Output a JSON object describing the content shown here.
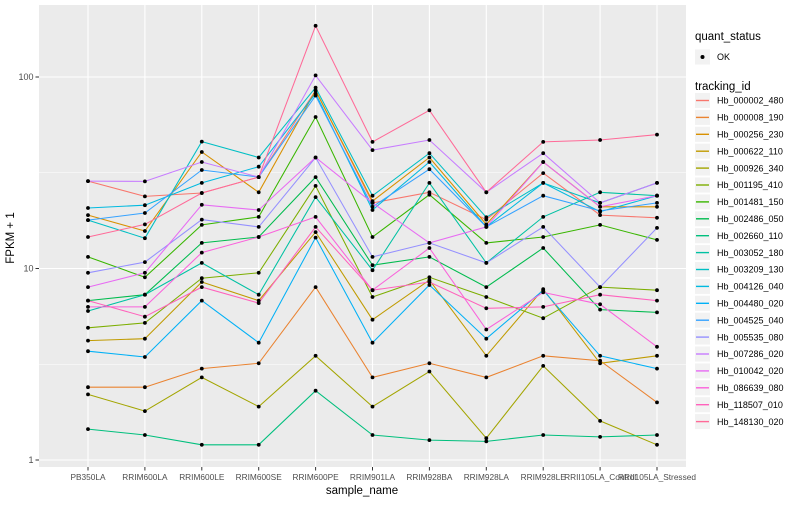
{
  "figure": {
    "background": "#FFFFFF",
    "panel_background": "#EBEBEB",
    "grid_color": "#FFFFFF",
    "legend_key_background": "#F2F2F2",
    "axis_text_color": "#4D4D4D"
  },
  "axes": {
    "x_title": "sample_name",
    "y_title": "FPKM + 1",
    "y_tick_labels": [
      "1",
      "10",
      "100"
    ]
  },
  "legend": {
    "quant_status_title": "quant_status",
    "quant_status_items": [
      {
        "label": "OK",
        "shape": "point",
        "color": "#000000"
      }
    ],
    "tracking_id_title": "tracking_id"
  },
  "chart_data": {
    "type": "line",
    "title": "",
    "xlabel": "sample_name",
    "ylabel": "FPKM + 1",
    "y_scale": "log10",
    "ylim": [
      1,
      200
    ],
    "y_ticks": [
      1,
      10,
      100
    ],
    "y_minor_ticks": [
      3.162,
      31.62
    ],
    "grid": true,
    "legend_position": "right",
    "point_marker": "black point = quant_status OK",
    "categories": [
      "PB350LA",
      "RRIM600LA",
      "RRIM600LE",
      "RRIM600SE",
      "RRIM600PE",
      "RRIM901LA",
      "RRIM928BA",
      "RRIM928LA",
      "RRIM928LE",
      "RRII105LA_Control",
      "RRII105LA_Stressed"
    ],
    "series": [
      {
        "name": "Hb_000002_480",
        "color": "#F8766D",
        "values": [
          28.6,
          23.8,
          24.8,
          30,
          85,
          22,
          25,
          18,
          31.5,
          19,
          18.4
        ]
      },
      {
        "name": "Hb_000008_190",
        "color": "#EA8331",
        "values": [
          2.4,
          2.4,
          3.0,
          3.2,
          8.0,
          2.7,
          3.2,
          2.7,
          3.5,
          3.3,
          2.0
        ]
      },
      {
        "name": "Hb_000256_230",
        "color": "#D89000",
        "values": [
          19,
          15.7,
          40.6,
          25,
          85,
          22.5,
          38,
          17,
          36,
          21,
          21
        ]
      },
      {
        "name": "Hb_000622_110",
        "color": "#C09B00",
        "values": [
          4.2,
          4.3,
          8.5,
          6.8,
          15.5,
          5.4,
          8.7,
          3.5,
          7.8,
          3.2,
          3.5
        ]
      },
      {
        "name": "Hb_000926_340",
        "color": "#A3A500",
        "values": [
          2.2,
          1.8,
          2.7,
          1.9,
          3.5,
          1.9,
          2.9,
          1.3,
          3.1,
          1.6,
          1.2
        ]
      },
      {
        "name": "Hb_001195_410",
        "color": "#7CAE00",
        "values": [
          4.9,
          5.2,
          8.9,
          9.5,
          27,
          7.1,
          9.0,
          7.1,
          5.5,
          8.0,
          7.7
        ]
      },
      {
        "name": "Hb_001481_150",
        "color": "#39B600",
        "values": [
          11.5,
          9.0,
          16.9,
          18.6,
          61.8,
          14.6,
          24.3,
          13.6,
          14.6,
          16.9,
          14.1
        ]
      },
      {
        "name": "Hb_002486_050",
        "color": "#00BB4E",
        "values": [
          6.8,
          7.3,
          13.6,
          14.6,
          30,
          10.4,
          11.5,
          8.0,
          12.8,
          6.1,
          5.9
        ]
      },
      {
        "name": "Hb_002660_110",
        "color": "#00BF7D",
        "values": [
          1.45,
          1.35,
          1.2,
          1.2,
          2.3,
          1.35,
          1.27,
          1.25,
          1.35,
          1.32,
          1.35
        ]
      },
      {
        "name": "Hb_003052_180",
        "color": "#00C1A3",
        "values": [
          6.0,
          7.3,
          10.7,
          7.3,
          23.6,
          9.8,
          28,
          10.7,
          18.6,
          25,
          24
        ]
      },
      {
        "name": "Hb_003209_130",
        "color": "#00BFC4",
        "values": [
          17.9,
          14.4,
          46,
          38,
          88,
          24,
          40,
          18.5,
          28,
          22,
          28
        ]
      },
      {
        "name": "Hb_004126_040",
        "color": "#00BAE0",
        "values": [
          20.7,
          21.4,
          28,
          34,
          82,
          20.2,
          36,
          16.5,
          28,
          19.8,
          24
        ]
      },
      {
        "name": "Hb_004480_020",
        "color": "#00B0F6",
        "values": [
          3.7,
          3.45,
          6.8,
          4.1,
          14.5,
          4.1,
          8.2,
          4.3,
          7.7,
          3.5,
          3.0
        ]
      },
      {
        "name": "Hb_004525_040",
        "color": "#35A2FF",
        "values": [
          17.9,
          19.5,
          32.7,
          30,
          80,
          21,
          33,
          16.5,
          24,
          20,
          22
        ]
      },
      {
        "name": "Hb_005535_080",
        "color": "#9590FF",
        "values": [
          9.5,
          10.8,
          18,
          16.5,
          38,
          11.5,
          13.6,
          10.7,
          16.5,
          8.0,
          16.3
        ]
      },
      {
        "name": "Hb_007286_020",
        "color": "#C77CFF",
        "values": [
          28.6,
          28.5,
          36,
          30,
          102,
          41.5,
          46.9,
          25,
          40,
          22,
          28
        ]
      },
      {
        "name": "Hb_010042_020",
        "color": "#E76BF3",
        "values": [
          8.0,
          9.5,
          21.5,
          20.2,
          38,
          22,
          13.6,
          16.5,
          36,
          21,
          24
        ]
      },
      {
        "name": "Hb_086639_080",
        "color": "#FA62DB",
        "values": [
          6.3,
          6.3,
          12.1,
          14.6,
          18.6,
          7.7,
          12.8,
          4.8,
          7.5,
          6.5,
          3.9
        ]
      },
      {
        "name": "Hb_118507_010",
        "color": "#FF62BC",
        "values": [
          6.8,
          5.6,
          8.0,
          6.6,
          16.5,
          7.7,
          8.5,
          6.2,
          6.3,
          7.3,
          6.8
        ]
      },
      {
        "name": "Hb_148130_020",
        "color": "#FF6A98",
        "values": [
          14.6,
          17,
          24.8,
          30,
          185,
          45.8,
          67,
          25,
          45.8,
          46.9,
          50
        ]
      }
    ]
  }
}
